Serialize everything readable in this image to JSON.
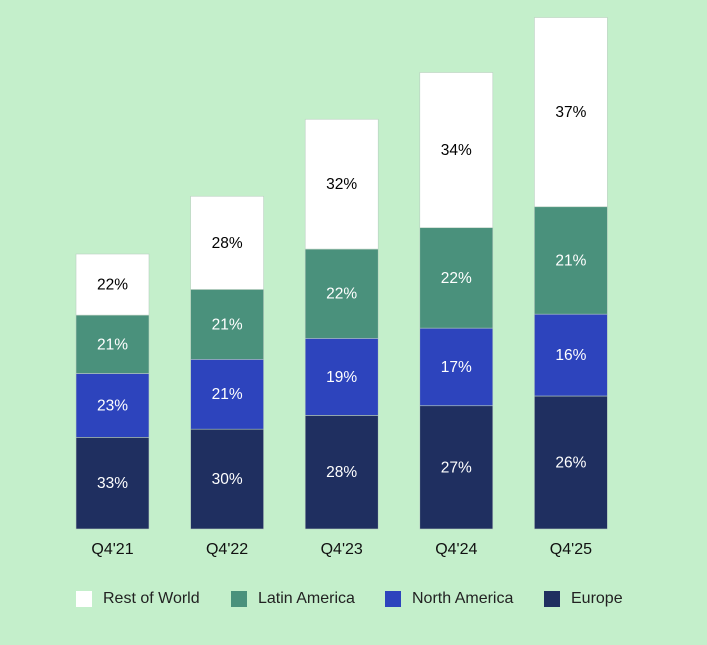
{
  "chart_data": {
    "type": "bar",
    "stacked": true,
    "categories": [
      "Q4'21",
      "Q4'22",
      "Q4'23",
      "Q4'24",
      "Q4'25"
    ],
    "relative_total": [
      100,
      121,
      149,
      166,
      186
    ],
    "series": [
      {
        "name": "Europe",
        "color": "#1f2f60",
        "text_color": "#ffffff",
        "values": [
          33,
          30,
          28,
          27,
          26
        ]
      },
      {
        "name": "North America",
        "color": "#2d44bd",
        "text_color": "#ffffff",
        "values": [
          23,
          21,
          19,
          17,
          16
        ]
      },
      {
        "name": "Latin America",
        "color": "#4a917c",
        "text_color": "#ffffff",
        "values": [
          21,
          21,
          22,
          22,
          21
        ]
      },
      {
        "name": "Rest of World",
        "color": "#ffffff",
        "text_color": "#000000",
        "values": [
          22,
          28,
          32,
          34,
          37
        ]
      }
    ],
    "data_label_format": "{v}%",
    "legend_position": "bottom",
    "legend_order": [
      "Rest of World",
      "Latin America",
      "North America",
      "Europe"
    ],
    "grid": false,
    "y_axis_visible": false
  }
}
